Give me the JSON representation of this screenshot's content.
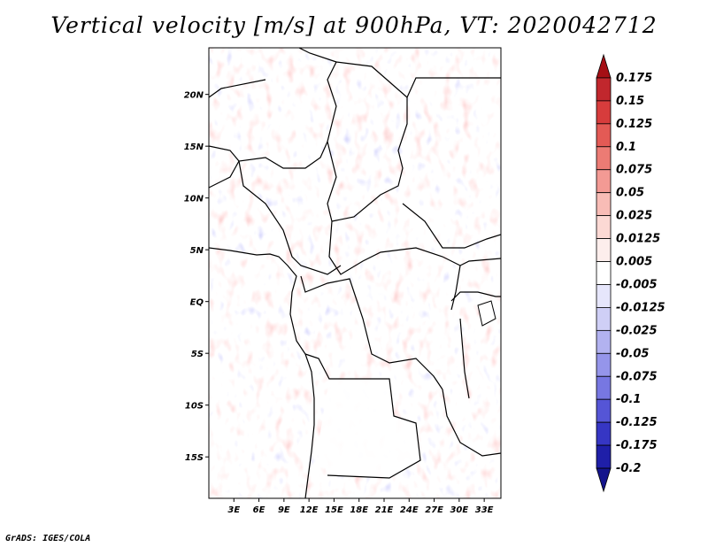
{
  "title": "Vertical velocity [m/s] at 900hPa, VT: 2020042712",
  "footer": "GrADS: IGES/COLA",
  "map": {
    "lon_range": [
      0,
      35
    ],
    "lat_range": [
      -19,
      24.5
    ],
    "lat_ticks": [
      "20N",
      "15N",
      "10N",
      "5N",
      "EQ",
      "5S",
      "10S",
      "15S"
    ],
    "lat_values": [
      20,
      15,
      10,
      5,
      0,
      -5,
      -10,
      -15
    ],
    "lon_ticks": [
      "3E",
      "6E",
      "9E",
      "12E",
      "15E",
      "18E",
      "21E",
      "24E",
      "27E",
      "30E",
      "33E"
    ],
    "lon_values": [
      3,
      6,
      9,
      12,
      15,
      18,
      21,
      24,
      27,
      30,
      33
    ]
  },
  "colorbar": {
    "labels": [
      "0.175",
      "0.15",
      "0.125",
      "0.1",
      "0.075",
      "0.05",
      "0.025",
      "0.0125",
      "0.005",
      "-0.005",
      "-0.0125",
      "-0.025",
      "-0.05",
      "-0.075",
      "-0.1",
      "-0.125",
      "-0.175",
      "-0.2"
    ],
    "colors": [
      "#a50f15",
      "#c1272d",
      "#d73c3c",
      "#e35a55",
      "#ec7b74",
      "#f39a94",
      "#f8bcb6",
      "#fcd9d4",
      "#fdeeec",
      "#ffffff",
      "#e6e6fb",
      "#cfcff6",
      "#b2b2f0",
      "#9595ea",
      "#7777e2",
      "#5555d6",
      "#3636c4",
      "#1f1fa8",
      "#14148c"
    ]
  }
}
